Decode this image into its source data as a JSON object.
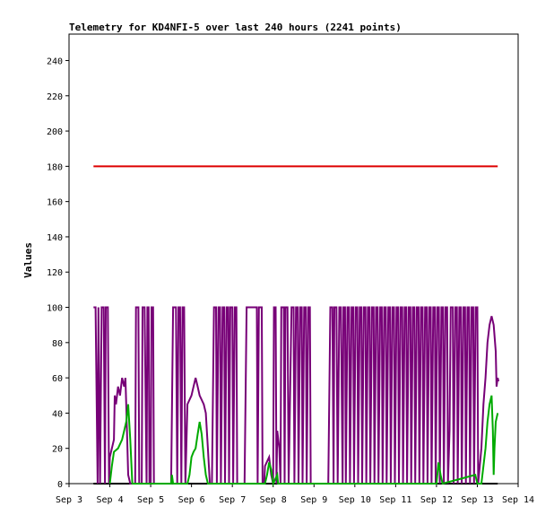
{
  "chart_data": {
    "type": "line",
    "title": "Telemetry for KD4NFI-5 over last 240 hours (2241 points)",
    "xlabel": "",
    "ylabel": "Values",
    "x_ticks": [
      "Sep 3",
      "Sep 4",
      "Sep 5",
      "Sep 6",
      "Sep 7",
      "Sep 8",
      "Sep 9",
      "Sep 10",
      "Sep 11",
      "Sep 12",
      "Sep 13",
      "Sep 14"
    ],
    "xlim": [
      3,
      14
    ],
    "y_ticks": [
      0,
      20,
      40,
      60,
      80,
      100,
      120,
      140,
      160,
      180,
      200,
      220,
      240
    ],
    "ylim": [
      0,
      255
    ],
    "grid": false,
    "legend": "none",
    "series": [
      {
        "color": "#dd0000",
        "points": [
          [
            3.6,
            180
          ],
          [
            13.5,
            180
          ]
        ]
      },
      {
        "color": "#000000",
        "points": [
          [
            3.6,
            0
          ],
          [
            13.5,
            0
          ]
        ]
      },
      {
        "color": "#770077",
        "points": [
          [
            3.6,
            100
          ],
          [
            3.65,
            100
          ],
          [
            3.7,
            0
          ],
          [
            3.72,
            100
          ],
          [
            3.76,
            0
          ],
          [
            3.8,
            100
          ],
          [
            3.85,
            100
          ],
          [
            3.88,
            0
          ],
          [
            3.9,
            100
          ],
          [
            3.95,
            100
          ],
          [
            3.98,
            0
          ],
          [
            4.0,
            15
          ],
          [
            4.1,
            25
          ],
          [
            4.12,
            50
          ],
          [
            4.15,
            45
          ],
          [
            4.2,
            55
          ],
          [
            4.25,
            50
          ],
          [
            4.3,
            60
          ],
          [
            4.35,
            55
          ],
          [
            4.38,
            60
          ],
          [
            4.4,
            45
          ],
          [
            4.45,
            5
          ],
          [
            4.5,
            0
          ],
          [
            4.62,
            0
          ],
          [
            4.64,
            100
          ],
          [
            4.7,
            100
          ],
          [
            4.72,
            0
          ],
          [
            4.78,
            0
          ],
          [
            4.8,
            100
          ],
          [
            4.85,
            100
          ],
          [
            4.9,
            0
          ],
          [
            4.92,
            100
          ],
          [
            4.95,
            100
          ],
          [
            4.97,
            0
          ],
          [
            5.0,
            0
          ],
          [
            5.02,
            100
          ],
          [
            5.06,
            100
          ],
          [
            5.08,
            0
          ],
          [
            5.2,
            0
          ],
          [
            5.4,
            0
          ],
          [
            5.5,
            0
          ],
          [
            5.55,
            100
          ],
          [
            5.62,
            100
          ],
          [
            5.65,
            0
          ],
          [
            5.68,
            100
          ],
          [
            5.72,
            100
          ],
          [
            5.75,
            0
          ],
          [
            5.78,
            100
          ],
          [
            5.82,
            100
          ],
          [
            5.85,
            0
          ],
          [
            5.9,
            45
          ],
          [
            6.0,
            50
          ],
          [
            6.05,
            55
          ],
          [
            6.1,
            60
          ],
          [
            6.15,
            55
          ],
          [
            6.2,
            50
          ],
          [
            6.3,
            45
          ],
          [
            6.35,
            40
          ],
          [
            6.4,
            20
          ],
          [
            6.45,
            0
          ],
          [
            6.5,
            0
          ],
          [
            6.55,
            100
          ],
          [
            6.6,
            100
          ],
          [
            6.62,
            0
          ],
          [
            6.66,
            100
          ],
          [
            6.7,
            100
          ],
          [
            6.72,
            0
          ],
          [
            6.76,
            100
          ],
          [
            6.8,
            100
          ],
          [
            6.82,
            0
          ],
          [
            6.86,
            100
          ],
          [
            6.9,
            100
          ],
          [
            6.92,
            0
          ],
          [
            6.95,
            100
          ],
          [
            7.0,
            100
          ],
          [
            7.02,
            0
          ],
          [
            7.06,
            100
          ],
          [
            7.1,
            100
          ],
          [
            7.12,
            0
          ],
          [
            7.3,
            0
          ],
          [
            7.35,
            100
          ],
          [
            7.6,
            100
          ],
          [
            7.62,
            0
          ],
          [
            7.65,
            100
          ],
          [
            7.72,
            100
          ],
          [
            7.74,
            0
          ],
          [
            7.78,
            0
          ],
          [
            7.8,
            10
          ],
          [
            7.9,
            15
          ],
          [
            7.95,
            5
          ],
          [
            8.0,
            0
          ],
          [
            8.02,
            100
          ],
          [
            8.06,
            100
          ],
          [
            8.08,
            0
          ],
          [
            8.1,
            30
          ],
          [
            8.15,
            20
          ],
          [
            8.18,
            0
          ],
          [
            8.2,
            100
          ],
          [
            8.26,
            100
          ],
          [
            8.28,
            0
          ],
          [
            8.3,
            100
          ],
          [
            8.35,
            100
          ],
          [
            8.38,
            0
          ],
          [
            8.45,
            100
          ],
          [
            8.5,
            100
          ],
          [
            8.52,
            0
          ],
          [
            8.56,
            100
          ],
          [
            8.6,
            100
          ],
          [
            8.62,
            0
          ],
          [
            8.66,
            100
          ],
          [
            8.7,
            100
          ],
          [
            8.72,
            0
          ],
          [
            8.76,
            100
          ],
          [
            8.8,
            100
          ],
          [
            8.82,
            0
          ],
          [
            8.86,
            100
          ],
          [
            8.9,
            100
          ],
          [
            8.92,
            0
          ],
          [
            9.0,
            0
          ],
          [
            9.2,
            0
          ],
          [
            9.35,
            0
          ],
          [
            9.4,
            100
          ],
          [
            9.45,
            100
          ],
          [
            9.48,
            0
          ],
          [
            9.5,
            100
          ],
          [
            9.55,
            100
          ],
          [
            9.58,
            0
          ],
          [
            9.62,
            100
          ],
          [
            9.66,
            100
          ],
          [
            9.7,
            0
          ],
          [
            9.72,
            100
          ],
          [
            9.76,
            100
          ],
          [
            9.78,
            0
          ],
          [
            9.82,
            100
          ],
          [
            9.86,
            100
          ],
          [
            9.88,
            0
          ],
          [
            9.92,
            100
          ],
          [
            9.96,
            100
          ],
          [
            9.98,
            0
          ],
          [
            10.02,
            100
          ],
          [
            10.06,
            100
          ],
          [
            10.08,
            0
          ],
          [
            10.12,
            100
          ],
          [
            10.16,
            100
          ],
          [
            10.18,
            0
          ],
          [
            10.22,
            100
          ],
          [
            10.26,
            100
          ],
          [
            10.28,
            0
          ],
          [
            10.32,
            100
          ],
          [
            10.36,
            100
          ],
          [
            10.38,
            0
          ],
          [
            10.42,
            100
          ],
          [
            10.46,
            100
          ],
          [
            10.48,
            0
          ],
          [
            10.52,
            100
          ],
          [
            10.56,
            100
          ],
          [
            10.58,
            0
          ],
          [
            10.62,
            100
          ],
          [
            10.66,
            100
          ],
          [
            10.68,
            0
          ],
          [
            10.72,
            100
          ],
          [
            10.76,
            100
          ],
          [
            10.78,
            0
          ],
          [
            10.82,
            100
          ],
          [
            10.86,
            100
          ],
          [
            10.88,
            0
          ],
          [
            10.92,
            100
          ],
          [
            10.96,
            100
          ],
          [
            10.98,
            0
          ],
          [
            11.02,
            100
          ],
          [
            11.06,
            100
          ],
          [
            11.08,
            0
          ],
          [
            11.12,
            100
          ],
          [
            11.16,
            100
          ],
          [
            11.18,
            0
          ],
          [
            11.22,
            100
          ],
          [
            11.26,
            100
          ],
          [
            11.28,
            0
          ],
          [
            11.32,
            100
          ],
          [
            11.36,
            100
          ],
          [
            11.38,
            0
          ],
          [
            11.42,
            100
          ],
          [
            11.46,
            100
          ],
          [
            11.48,
            0
          ],
          [
            11.52,
            100
          ],
          [
            11.56,
            100
          ],
          [
            11.58,
            0
          ],
          [
            11.62,
            100
          ],
          [
            11.66,
            100
          ],
          [
            11.68,
            0
          ],
          [
            11.72,
            100
          ],
          [
            11.76,
            100
          ],
          [
            11.78,
            0
          ],
          [
            11.82,
            100
          ],
          [
            11.86,
            100
          ],
          [
            11.88,
            0
          ],
          [
            11.92,
            100
          ],
          [
            11.96,
            100
          ],
          [
            11.98,
            0
          ],
          [
            12.02,
            100
          ],
          [
            12.06,
            100
          ],
          [
            12.08,
            0
          ],
          [
            12.12,
            100
          ],
          [
            12.16,
            100
          ],
          [
            12.18,
            0
          ],
          [
            12.22,
            100
          ],
          [
            12.26,
            100
          ],
          [
            12.28,
            0
          ],
          [
            12.32,
            30
          ],
          [
            12.35,
            100
          ],
          [
            12.4,
            100
          ],
          [
            12.42,
            0
          ],
          [
            12.46,
            100
          ],
          [
            12.5,
            100
          ],
          [
            12.52,
            0
          ],
          [
            12.56,
            100
          ],
          [
            12.6,
            100
          ],
          [
            12.62,
            0
          ],
          [
            12.66,
            100
          ],
          [
            12.7,
            100
          ],
          [
            12.72,
            0
          ],
          [
            12.76,
            100
          ],
          [
            12.8,
            100
          ],
          [
            12.82,
            0
          ],
          [
            12.86,
            100
          ],
          [
            12.9,
            100
          ],
          [
            12.92,
            0
          ],
          [
            12.96,
            100
          ],
          [
            13.0,
            100
          ],
          [
            13.02,
            0
          ],
          [
            13.1,
            20
          ],
          [
            13.15,
            45
          ],
          [
            13.2,
            60
          ],
          [
            13.25,
            80
          ],
          [
            13.3,
            90
          ],
          [
            13.35,
            95
          ],
          [
            13.4,
            90
          ],
          [
            13.45,
            75
          ],
          [
            13.47,
            55
          ],
          [
            13.5,
            60
          ],
          [
            13.52,
            58
          ]
        ]
      },
      {
        "color": "#00aa00",
        "points": [
          [
            4.0,
            0
          ],
          [
            4.05,
            10
          ],
          [
            4.1,
            18
          ],
          [
            4.2,
            20
          ],
          [
            4.3,
            25
          ],
          [
            4.35,
            30
          ],
          [
            4.4,
            35
          ],
          [
            4.45,
            45
          ],
          [
            4.5,
            25
          ],
          [
            4.55,
            0
          ],
          [
            5.5,
            0
          ],
          [
            5.52,
            5
          ],
          [
            5.55,
            0
          ],
          [
            5.9,
            0
          ],
          [
            5.95,
            5
          ],
          [
            6.0,
            15
          ],
          [
            6.05,
            18
          ],
          [
            6.1,
            20
          ],
          [
            6.15,
            28
          ],
          [
            6.2,
            35
          ],
          [
            6.25,
            28
          ],
          [
            6.3,
            15
          ],
          [
            6.35,
            5
          ],
          [
            6.4,
            0
          ],
          [
            7.8,
            0
          ],
          [
            7.85,
            5
          ],
          [
            7.9,
            12
          ],
          [
            7.95,
            8
          ],
          [
            8.0,
            0
          ],
          [
            8.1,
            5
          ],
          [
            8.12,
            0
          ],
          [
            12.0,
            0
          ],
          [
            12.05,
            12
          ],
          [
            12.1,
            5
          ],
          [
            12.15,
            0
          ],
          [
            12.95,
            5
          ],
          [
            13.0,
            0
          ],
          [
            13.1,
            0
          ],
          [
            13.15,
            10
          ],
          [
            13.2,
            20
          ],
          [
            13.25,
            35
          ],
          [
            13.3,
            45
          ],
          [
            13.35,
            50
          ],
          [
            13.38,
            30
          ],
          [
            13.4,
            5
          ],
          [
            13.42,
            20
          ],
          [
            13.45,
            35
          ],
          [
            13.5,
            40
          ]
        ]
      }
    ]
  }
}
